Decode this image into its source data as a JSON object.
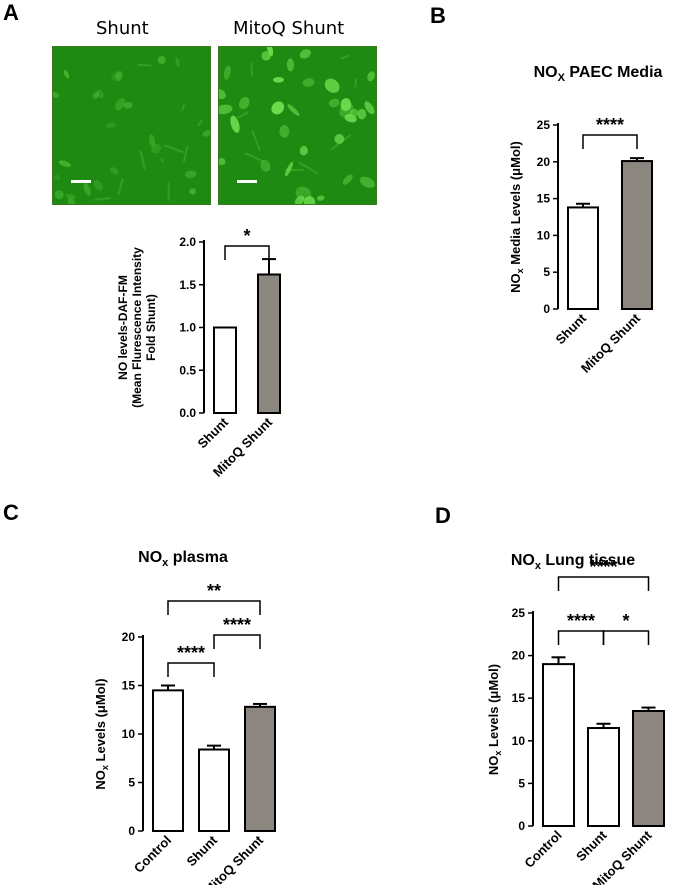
{
  "panels": {
    "a": {
      "letter": "A",
      "images": [
        {
          "label": "Shunt"
        },
        {
          "label": "MitoQ Shunt"
        }
      ]
    },
    "b": {
      "letter": "B"
    },
    "c": {
      "letter": "C"
    },
    "d": {
      "letter": "D"
    }
  },
  "colors": {
    "bar_white": "#ffffff",
    "bar_gray": "#8c8680",
    "micro_bg": "#1e8a12",
    "cell": "#6fe04f"
  },
  "chart_data": [
    {
      "id": "a",
      "type": "bar",
      "title": "",
      "ylabel_lines": [
        "NO levels-DAF-FM",
        "(Mean Flurescence Intensity",
        "Fold Shunt)"
      ],
      "categories": [
        "Shunt",
        "MitoQ Shunt"
      ],
      "values": [
        1.0,
        1.62
      ],
      "errors": [
        0,
        0.18
      ],
      "fills": [
        "white",
        "gray"
      ],
      "ylim": [
        0,
        2.0
      ],
      "yticks": [
        0.0,
        0.5,
        1.0,
        1.5,
        2.0
      ],
      "tick_labels": [
        "0.0",
        "0.5",
        "1.0",
        "1.5",
        "2.0"
      ],
      "significance": [
        {
          "from": 0,
          "to": 1,
          "label": "*"
        }
      ]
    },
    {
      "id": "b",
      "type": "bar",
      "title": "NOx PAEC Media",
      "title_main": "NO",
      "title_sub": "X",
      "title_rest": " PAEC Media",
      "ylabel_main": "NO",
      "ylabel_sub": "x",
      "ylabel_rest": " Media Levels (μMol)",
      "categories": [
        "Shunt",
        "MitoQ Shunt"
      ],
      "values": [
        13.8,
        20.1
      ],
      "errors": [
        0.5,
        0.4
      ],
      "fills": [
        "white",
        "gray"
      ],
      "ylim": [
        0,
        25
      ],
      "yticks": [
        0,
        5,
        10,
        15,
        20,
        25
      ],
      "tick_labels": [
        "0",
        "5",
        "10",
        "15",
        "20",
        "25"
      ],
      "significance": [
        {
          "from": 0,
          "to": 1,
          "label": "****"
        }
      ]
    },
    {
      "id": "c",
      "type": "bar",
      "title": "NOx plasma",
      "title_main": "NO",
      "title_sub": "x",
      "title_rest": " plasma",
      "ylabel_main": "NO",
      "ylabel_sub": "x",
      "ylabel_rest": " Levels (μMol)",
      "categories": [
        "Control",
        "Shunt",
        "MitoQ Shunt"
      ],
      "values": [
        14.5,
        8.4,
        12.8
      ],
      "errors": [
        0.5,
        0.4,
        0.3
      ],
      "fills": [
        "white",
        "white",
        "gray"
      ],
      "ylim": [
        0,
        20
      ],
      "yticks": [
        0,
        5,
        10,
        15,
        20
      ],
      "tick_labels": [
        "0",
        "5",
        "10",
        "15",
        "20"
      ],
      "significance": [
        {
          "from": 0,
          "to": 1,
          "label": "****"
        },
        {
          "from": 1,
          "to": 2,
          "label": "****"
        },
        {
          "from": 0,
          "to": 2,
          "label": "**"
        }
      ]
    },
    {
      "id": "d",
      "type": "bar",
      "title": "NOx Lung tissue",
      "title_main": "NO",
      "title_sub": "x",
      "title_rest": " Lung tissue",
      "ylabel_main": "NO",
      "ylabel_sub": "x",
      "ylabel_rest": " Levels (μMol)",
      "categories": [
        "Control",
        "Shunt",
        "MitoQ Shunt"
      ],
      "values": [
        19.0,
        11.5,
        13.5
      ],
      "errors": [
        0.8,
        0.5,
        0.4
      ],
      "fills": [
        "white",
        "white",
        "gray"
      ],
      "ylim": [
        0,
        25
      ],
      "yticks": [
        0,
        5,
        10,
        15,
        20,
        25
      ],
      "tick_labels": [
        "0",
        "5",
        "10",
        "15",
        "20",
        "25"
      ],
      "significance": [
        {
          "from": 0,
          "to": 1,
          "label": "****"
        },
        {
          "from": 1,
          "to": 2,
          "label": "*"
        },
        {
          "from": 0,
          "to": 2,
          "label": "****"
        }
      ]
    }
  ]
}
